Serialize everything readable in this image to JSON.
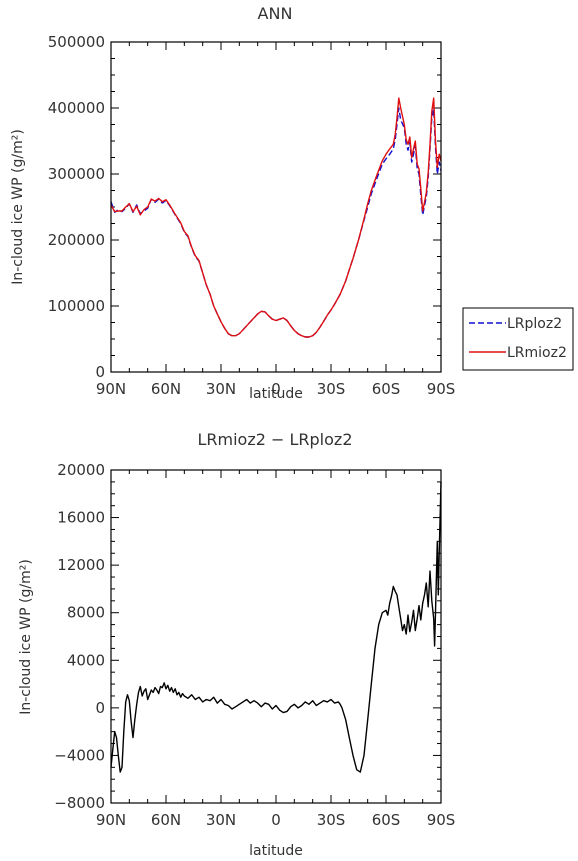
{
  "chart_data": [
    {
      "type": "line",
      "title": "ANN",
      "xlabel": "latitude",
      "ylabel": "In-cloud ice WP (g/m²)",
      "xlim": [
        90,
        -90
      ],
      "ylim": [
        0,
        500000
      ],
      "xticks": [
        90,
        60,
        30,
        0,
        -30,
        -60,
        -90
      ],
      "xtick_labels": [
        "90N",
        "60N",
        "30N",
        "0",
        "30S",
        "60S",
        "90S"
      ],
      "yticks": [
        0,
        100000,
        200000,
        300000,
        400000,
        500000
      ],
      "ytick_labels": [
        "0",
        "100000",
        "200000",
        "300000",
        "400000",
        "500000"
      ],
      "legend": "outside-right",
      "series": [
        {
          "name": "LRploz2",
          "color": "#1010d0",
          "dash": true,
          "x": [
            90,
            88,
            86,
            84,
            82,
            80,
            78,
            76,
            74,
            72,
            70,
            68,
            66,
            64,
            62,
            60,
            58,
            55,
            52,
            50,
            48,
            46,
            44,
            42,
            40,
            38,
            36,
            34,
            32,
            30,
            28,
            26,
            24,
            22,
            20,
            18,
            16,
            14,
            12,
            10,
            8,
            6,
            4,
            2,
            0,
            -2,
            -4,
            -6,
            -8,
            -10,
            -12,
            -14,
            -16,
            -18,
            -20,
            -22,
            -24,
            -26,
            -28,
            -30,
            -32,
            -35,
            -38,
            -40,
            -42,
            -45,
            -48,
            -50,
            -52,
            -55,
            -58,
            -60,
            -62,
            -64,
            -65,
            -66,
            -67,
            -68,
            -70,
            -71,
            -72,
            -73,
            -74,
            -75,
            -76,
            -77,
            -78,
            -79,
            -80,
            -81,
            -82,
            -83,
            -84,
            -85,
            -86,
            -87,
            -88,
            -89,
            -90
          ],
          "y": [
            258000,
            242000,
            246000,
            243000,
            248000,
            255000,
            242000,
            253000,
            240000,
            244000,
            248000,
            262000,
            257000,
            262000,
            256000,
            260000,
            252000,
            238000,
            225000,
            212000,
            205000,
            188000,
            175000,
            168000,
            150000,
            132000,
            118000,
            100000,
            88000,
            76000,
            66000,
            58000,
            55000,
            55000,
            58000,
            64000,
            70000,
            76000,
            82000,
            88000,
            92000,
            91000,
            85000,
            80000,
            78000,
            80000,
            82000,
            78000,
            70000,
            63000,
            58000,
            55000,
            53000,
            53000,
            55000,
            60000,
            68000,
            77000,
            86000,
            94000,
            103000,
            118000,
            138000,
            155000,
            172000,
            200000,
            230000,
            250000,
            270000,
            293000,
            315000,
            323000,
            330000,
            338000,
            352000,
            375000,
            400000,
            382000,
            370000,
            345000,
            336000,
            348000,
            318000,
            330000,
            342000,
            308000,
            300000,
            268000,
            238000,
            252000,
            265000,
            295000,
            338000,
            385000,
            398000,
            340000,
            300000,
            318000,
            305000
          ]
        },
        {
          "name": "LRmioz2",
          "color": "#e01010",
          "dash": false,
          "x": [
            90,
            88,
            86,
            84,
            82,
            80,
            78,
            76,
            74,
            72,
            70,
            68,
            66,
            64,
            62,
            60,
            58,
            55,
            52,
            50,
            48,
            46,
            44,
            42,
            40,
            38,
            36,
            34,
            32,
            30,
            28,
            26,
            24,
            22,
            20,
            18,
            16,
            14,
            12,
            10,
            8,
            6,
            4,
            2,
            0,
            -2,
            -4,
            -6,
            -8,
            -10,
            -12,
            -14,
            -16,
            -18,
            -20,
            -22,
            -24,
            -26,
            -28,
            -30,
            -32,
            -35,
            -38,
            -40,
            -42,
            -45,
            -48,
            -50,
            -52,
            -55,
            -58,
            -60,
            -62,
            -64,
            -65,
            -66,
            -67,
            -68,
            -70,
            -71,
            -72,
            -73,
            -74,
            -75,
            -76,
            -77,
            -78,
            -79,
            -80,
            -81,
            -82,
            -83,
            -84,
            -85,
            -86,
            -87,
            -88,
            -89,
            -90
          ],
          "y": [
            253000,
            243000,
            244000,
            244000,
            250000,
            255000,
            243000,
            251000,
            238000,
            246000,
            250000,
            262000,
            259000,
            263000,
            258000,
            261000,
            253000,
            239000,
            226000,
            213000,
            206000,
            189000,
            176000,
            169000,
            150000,
            132000,
            118000,
            100000,
            88000,
            76000,
            66000,
            58000,
            55000,
            55000,
            58000,
            64000,
            70000,
            76000,
            82000,
            88000,
            92000,
            91000,
            85000,
            80000,
            78000,
            80000,
            82000,
            78000,
            70000,
            63000,
            58000,
            55000,
            53000,
            53000,
            55000,
            60000,
            68000,
            77000,
            86000,
            94000,
            103000,
            118000,
            138000,
            155000,
            172000,
            200000,
            232000,
            255000,
            275000,
            298000,
            320000,
            330000,
            338000,
            345000,
            360000,
            385000,
            415000,
            400000,
            375000,
            352000,
            345000,
            356000,
            325000,
            338000,
            350000,
            315000,
            308000,
            278000,
            244000,
            257000,
            272000,
            302000,
            345000,
            395000,
            415000,
            350000,
            310000,
            330000,
            320000
          ]
        }
      ]
    },
    {
      "type": "line",
      "title": "LRmioz2 − LRploz2",
      "xlabel": "latitude",
      "ylabel": "In-cloud ice WP (g/m²)",
      "xlim": [
        90,
        -90
      ],
      "ylim": [
        -8000,
        20000
      ],
      "xticks": [
        90,
        60,
        30,
        0,
        -30,
        -60,
        -90
      ],
      "xtick_labels": [
        "90N",
        "60N",
        "30N",
        "0",
        "30S",
        "60S",
        "90S"
      ],
      "yticks": [
        -8000,
        -4000,
        0,
        4000,
        8000,
        12000,
        16000,
        20000
      ],
      "ytick_labels": [
        "−8000",
        "−4000",
        "0",
        "4000",
        "8000",
        "12000",
        "16000",
        "20000"
      ],
      "series": [
        {
          "color": "#000000",
          "x": [
            90,
            89,
            88,
            87,
            86,
            85,
            84,
            83,
            82,
            81,
            80,
            79,
            78,
            77,
            76,
            75,
            74,
            73,
            72,
            71,
            70,
            69,
            68,
            67,
            66,
            65,
            64,
            63,
            62,
            61,
            60,
            59,
            58,
            57,
            56,
            55,
            54,
            53,
            52,
            51,
            50,
            48,
            46,
            44,
            42,
            40,
            38,
            36,
            34,
            32,
            30,
            28,
            26,
            24,
            22,
            20,
            18,
            16,
            14,
            12,
            10,
            8,
            6,
            4,
            2,
            0,
            -2,
            -4,
            -6,
            -8,
            -10,
            -12,
            -14,
            -16,
            -18,
            -20,
            -22,
            -24,
            -26,
            -28,
            -30,
            -32,
            -34,
            -35,
            -36,
            -38,
            -40,
            -42,
            -44,
            -46,
            -48,
            -50,
            -52,
            -54,
            -56,
            -58,
            -60,
            -61,
            -62,
            -63,
            -64,
            -65,
            -66,
            -67,
            -68,
            -69,
            -70,
            -71,
            -72,
            -73,
            -74,
            -75,
            -76,
            -77,
            -78,
            -79,
            -80,
            -81,
            -82,
            -83,
            -84,
            -85,
            -86,
            -86.5,
            -87,
            -87.5,
            -88,
            -88.5,
            -89,
            -89.5,
            -90
          ],
          "y": [
            -5000,
            -3500,
            -2000,
            -2500,
            -4000,
            -5400,
            -5000,
            -2000,
            500,
            1100,
            600,
            -1200,
            -2500,
            -1000,
            300,
            1300,
            1800,
            1000,
            1400,
            1600,
            700,
            1100,
            1500,
            1300,
            1700,
            1500,
            1200,
            1800,
            1700,
            2100,
            1600,
            1900,
            1400,
            1700,
            1300,
            1600,
            1100,
            1300,
            900,
            1200,
            1000,
            800,
            1100,
            700,
            900,
            500,
            700,
            600,
            900,
            400,
            700,
            300,
            200,
            -100,
            100,
            300,
            500,
            700,
            400,
            600,
            400,
            100,
            400,
            300,
            -100,
            200,
            -200,
            -400,
            -300,
            100,
            300,
            0,
            200,
            500,
            300,
            600,
            200,
            400,
            600,
            500,
            700,
            400,
            500,
            300,
            0,
            -1000,
            -2500,
            -4000,
            -5200,
            -5400,
            -4000,
            -1000,
            2000,
            5000,
            7000,
            8000,
            8200,
            7800,
            8800,
            9400,
            10200,
            9800,
            9500,
            8500,
            7500,
            6500,
            7000,
            6200,
            7800,
            6400,
            7200,
            8200,
            6500,
            7500,
            8600,
            7400,
            8800,
            9500,
            10500,
            8500,
            11500,
            9000,
            7500,
            5200,
            8000,
            11000,
            14000,
            9500,
            13000,
            16000,
            19000
          ]
        }
      ]
    }
  ]
}
